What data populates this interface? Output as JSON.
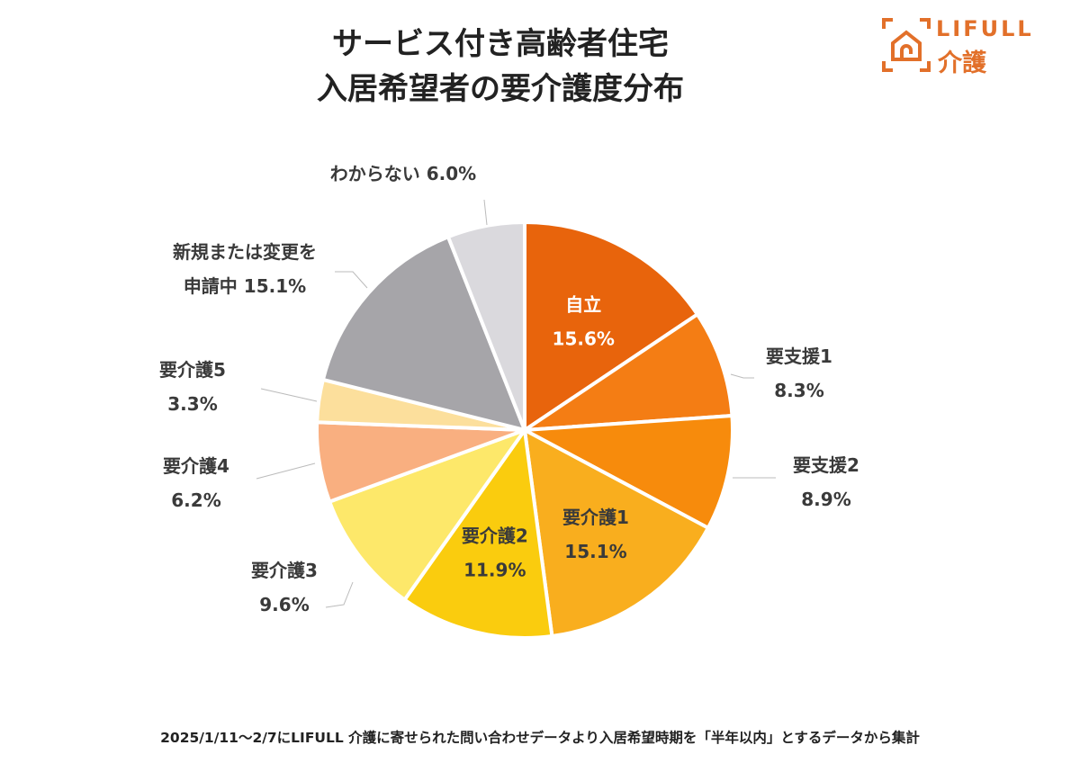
{
  "title": [
    "サービス付き高齢者住宅",
    "入居希望者の要介護度分布"
  ],
  "logo": {
    "line1": "LIFULL",
    "line2": "介護",
    "color": "#E2702A"
  },
  "footnote": "2025/1/11～2/7にLIFULL 介護に寄せられた問い合わせデータより入居希望時期を「半年以内」とするデータから集計",
  "chart_data": {
    "type": "pie",
    "start": "top",
    "direction": "clockwise",
    "slices": [
      {
        "label": [
          "自立"
        ],
        "value": 15.6,
        "value_label": "15.6%",
        "color": "#E8640C",
        "label_inside": true,
        "text_color": "#ffffff"
      },
      {
        "label": [
          "要支援1"
        ],
        "value": 8.3,
        "value_label": "8.3%",
        "color": "#F47D14",
        "label_inside": false
      },
      {
        "label": [
          "要支援2"
        ],
        "value": 8.9,
        "value_label": "8.9%",
        "color": "#F78B0C",
        "label_inside": false
      },
      {
        "label": [
          "要介護1"
        ],
        "value": 15.1,
        "value_label": "15.1%",
        "color": "#F9AE1E",
        "label_inside": true,
        "text_color": "#3a3a3a"
      },
      {
        "label": [
          "要介護2"
        ],
        "value": 11.9,
        "value_label": "11.9%",
        "color": "#FACC0E",
        "label_inside": true,
        "text_color": "#3a3a3a"
      },
      {
        "label": [
          "要介護3"
        ],
        "value": 9.6,
        "value_label": "9.6%",
        "color": "#FDE86A",
        "label_inside": false
      },
      {
        "label": [
          "要介護4"
        ],
        "value": 6.2,
        "value_label": "6.2%",
        "color": "#F9AF80",
        "label_inside": false
      },
      {
        "label": [
          "要介護5"
        ],
        "value": 3.3,
        "value_label": "3.3%",
        "color": "#FCDF9C",
        "label_inside": false
      },
      {
        "label": [
          "新規または変更を",
          "申請中"
        ],
        "value": 15.1,
        "value_label": "15.1%",
        "color": "#A6A5A9",
        "label_inside": false
      },
      {
        "label": [
          "わからない"
        ],
        "value": 6.0,
        "value_label": "6.0%",
        "color": "#DAD9DD",
        "label_inside": false
      }
    ]
  }
}
